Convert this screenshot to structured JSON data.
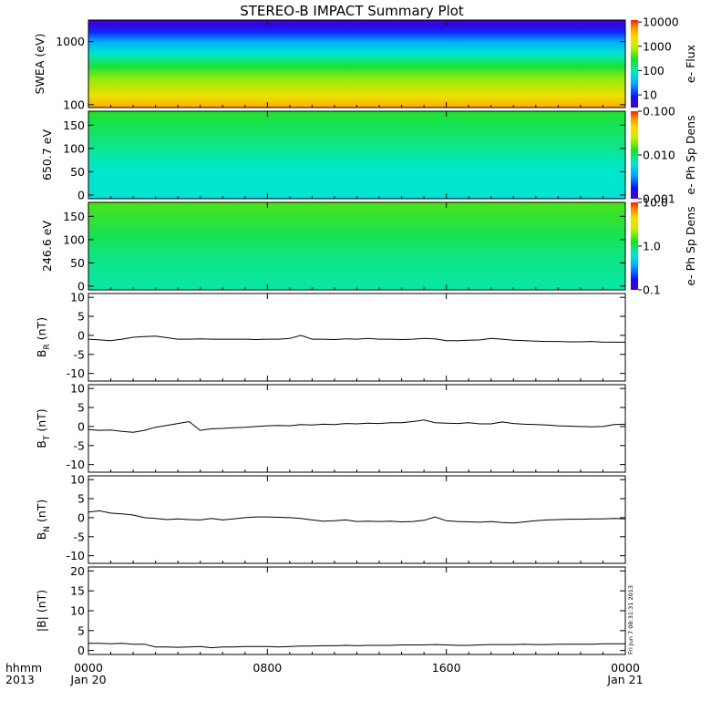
{
  "title": "STEREO-B IMPACT Summary Plot",
  "x_axis": {
    "corner_line1": "hhmm",
    "corner_line2": "2013",
    "ticks": [
      {
        "hour": 0,
        "label1": "0000",
        "label2": "Jan 20"
      },
      {
        "hour": 8,
        "label1": "0800",
        "label2": ""
      },
      {
        "hour": 16,
        "label1": "1600",
        "label2": ""
      },
      {
        "hour": 24,
        "label1": "0000",
        "label2": "Jan 21"
      }
    ]
  },
  "stamp": "Fri Jun  7 08:31:31 2013",
  "colors": {
    "line": "#000000",
    "axis": "#000000"
  },
  "chart_data": [
    {
      "type": "heatmap",
      "panel": "swea",
      "ylabel": "SWEA (eV)",
      "yscale": "log",
      "ylim": [
        90,
        2200
      ],
      "yticks": [
        {
          "v": 100,
          "label": "100"
        },
        {
          "v": 1000,
          "label": "1000"
        }
      ],
      "colorbar": {
        "label": "e- Flux",
        "scale": "log",
        "range": [
          3,
          12000
        ],
        "ticks": [
          {
            "v": 10,
            "label": "10"
          },
          {
            "v": 100,
            "label": "100"
          },
          {
            "v": 1000,
            "label": "1000"
          },
          {
            "v": 10000,
            "label": "10000"
          }
        ]
      },
      "profile": [
        {
          "energy": 90,
          "flux": 4300
        },
        {
          "energy": 140,
          "flux": 1800
        },
        {
          "energy": 250,
          "flux": 700
        },
        {
          "energy": 400,
          "flux": 250
        },
        {
          "energy": 650,
          "flux": 80
        },
        {
          "energy": 1000,
          "flux": 30
        },
        {
          "energy": 1400,
          "flux": 10
        },
        {
          "energy": 1800,
          "flux": 5
        },
        {
          "energy": 2200,
          "flux": 3
        }
      ]
    },
    {
      "type": "heatmap",
      "panel": "pad650",
      "ylabel": "650.7 eV",
      "ylim": [
        -8,
        180
      ],
      "yticks": [
        {
          "v": 0,
          "label": "0"
        },
        {
          "v": 50,
          "label": "50"
        },
        {
          "v": 100,
          "label": "100"
        },
        {
          "v": 150,
          "label": "150"
        }
      ],
      "colorbar": {
        "label": "e- Ph Sp Dens",
        "scale": "log",
        "range": [
          0.001,
          0.1
        ],
        "ticks": [
          {
            "v": 0.001,
            "label": "0.001"
          },
          {
            "v": 0.01,
            "label": "0.010"
          },
          {
            "v": 0.1,
            "label": "0.100"
          }
        ]
      },
      "profile": [
        {
          "pitch": 0,
          "density": 0.006
        },
        {
          "pitch": 60,
          "density": 0.0065
        },
        {
          "pitch": 110,
          "density": 0.0085
        },
        {
          "pitch": 180,
          "density": 0.012
        }
      ]
    },
    {
      "type": "heatmap",
      "panel": "pad246",
      "ylabel": "246.6 eV",
      "ylim": [
        -8,
        180
      ],
      "yticks": [
        {
          "v": 0,
          "label": "0"
        },
        {
          "v": 50,
          "label": "50"
        },
        {
          "v": 100,
          "label": "100"
        },
        {
          "v": 150,
          "label": "150"
        }
      ],
      "colorbar": {
        "label": "e- Ph Sp Dens",
        "scale": "log",
        "range": [
          0.1,
          10
        ],
        "ticks": [
          {
            "v": 0.1,
            "label": "0.1"
          },
          {
            "v": 1,
            "label": "1.0"
          },
          {
            "v": 10,
            "label": "10.0"
          }
        ]
      },
      "profile": [
        {
          "pitch": 0,
          "density": 0.75
        },
        {
          "pitch": 60,
          "density": 0.85
        },
        {
          "pitch": 110,
          "density": 1.05
        },
        {
          "pitch": 180,
          "density": 1.5
        }
      ]
    },
    {
      "type": "line",
      "panel": "br",
      "ylabel_main": "B",
      "ylabel_sub": "R",
      "ylabel_unit": " (nT)",
      "ylim": [
        -12,
        11
      ],
      "yticks": [
        -10,
        -5,
        0,
        5,
        10
      ],
      "x": [
        0,
        0.5,
        1,
        1.5,
        2,
        2.5,
        3,
        3.5,
        4,
        4.5,
        5,
        5.5,
        6,
        6.5,
        7,
        7.5,
        8,
        8.5,
        9,
        9.5,
        10,
        10.5,
        11,
        11.5,
        12,
        12.5,
        13,
        13.5,
        14,
        14.5,
        15,
        15.5,
        16,
        16.5,
        17,
        17.5,
        18,
        18.5,
        19,
        19.5,
        20,
        20.5,
        21,
        21.5,
        22,
        22.5,
        23,
        23.5,
        24
      ],
      "values": [
        -1.0,
        -1.2,
        -1.4,
        -1.0,
        -0.5,
        -0.3,
        -0.2,
        -0.6,
        -1.0,
        -1.0,
        -0.9,
        -1.0,
        -1.0,
        -1.0,
        -1.0,
        -1.1,
        -1.0,
        -1.0,
        -0.8,
        0.0,
        -1.0,
        -1.0,
        -1.1,
        -0.9,
        -1.0,
        -0.8,
        -1.0,
        -1.0,
        -1.1,
        -1.0,
        -0.8,
        -0.9,
        -1.4,
        -1.4,
        -1.3,
        -1.2,
        -0.8,
        -1.0,
        -1.3,
        -1.4,
        -1.5,
        -1.6,
        -1.6,
        -1.7,
        -1.7,
        -1.6,
        -1.8,
        -1.8,
        -1.8
      ]
    },
    {
      "type": "line",
      "panel": "bt",
      "ylabel_main": "B",
      "ylabel_sub": "T",
      "ylabel_unit": " (nT)",
      "ylim": [
        -12,
        11
      ],
      "yticks": [
        -10,
        -5,
        0,
        5,
        10
      ],
      "x": [
        0,
        0.5,
        1,
        1.5,
        2,
        2.5,
        3,
        3.5,
        4,
        4.5,
        5,
        5.5,
        6,
        6.5,
        7,
        7.5,
        8,
        8.5,
        9,
        9.5,
        10,
        10.5,
        11,
        11.5,
        12,
        12.5,
        13,
        13.5,
        14,
        14.5,
        15,
        15.5,
        16,
        16.5,
        17,
        17.5,
        18,
        18.5,
        19,
        19.5,
        20,
        20.5,
        21,
        21.5,
        22,
        22.5,
        23,
        23.5,
        24
      ],
      "values": [
        -0.8,
        -1.0,
        -0.9,
        -1.3,
        -1.5,
        -1.0,
        -0.2,
        0.3,
        0.8,
        1.3,
        -1.0,
        -0.6,
        -0.5,
        -0.3,
        -0.2,
        0.0,
        0.2,
        0.3,
        0.2,
        0.5,
        0.4,
        0.6,
        0.5,
        0.8,
        0.7,
        0.9,
        0.8,
        1.0,
        1.0,
        1.3,
        1.7,
        1.0,
        0.9,
        0.8,
        1.0,
        0.7,
        0.7,
        1.2,
        0.8,
        0.6,
        0.5,
        0.4,
        0.2,
        0.1,
        0.0,
        -0.1,
        0.0,
        0.5,
        0.6
      ]
    },
    {
      "type": "line",
      "panel": "bn",
      "ylabel_main": "B",
      "ylabel_sub": "N",
      "ylabel_unit": " (nT)",
      "ylim": [
        -12,
        11
      ],
      "yticks": [
        -10,
        -5,
        0,
        5,
        10
      ],
      "x": [
        0,
        0.5,
        1,
        1.5,
        2,
        2.5,
        3,
        3.5,
        4,
        4.5,
        5,
        5.5,
        6,
        6.5,
        7,
        7.5,
        8,
        8.5,
        9,
        9.5,
        10,
        10.5,
        11,
        11.5,
        12,
        12.5,
        13,
        13.5,
        14,
        14.5,
        15,
        15.5,
        16,
        16.5,
        17,
        17.5,
        18,
        18.5,
        19,
        19.5,
        20,
        20.5,
        21,
        21.5,
        22,
        22.5,
        23,
        23.5,
        24
      ],
      "values": [
        1.5,
        1.8,
        1.2,
        1.0,
        0.7,
        0.0,
        -0.2,
        -0.5,
        -0.3,
        -0.5,
        -0.6,
        -0.2,
        -0.6,
        -0.3,
        0.0,
        0.2,
        0.2,
        0.1,
        0.0,
        -0.2,
        -0.6,
        -0.9,
        -0.8,
        -0.6,
        -1.0,
        -0.9,
        -1.0,
        -0.9,
        -1.1,
        -1.0,
        -0.7,
        0.2,
        -0.8,
        -1.0,
        -1.1,
        -1.2,
        -1.0,
        -1.3,
        -1.4,
        -1.1,
        -0.8,
        -0.6,
        -0.5,
        -0.4,
        -0.4,
        -0.3,
        -0.3,
        -0.2,
        -0.3
      ]
    },
    {
      "type": "line",
      "panel": "bmag",
      "ylabel_main": "|B|",
      "ylabel_sub": "",
      "ylabel_unit": " (nT)",
      "ylim": [
        -1,
        21
      ],
      "yticks": [
        0,
        5,
        10,
        15,
        20
      ],
      "x": [
        0,
        0.5,
        1,
        1.5,
        2,
        2.5,
        3,
        3.5,
        4,
        4.5,
        5,
        5.5,
        6,
        6.5,
        7,
        7.5,
        8,
        8.5,
        9,
        9.5,
        10,
        10.5,
        11,
        11.5,
        12,
        12.5,
        13,
        13.5,
        14,
        14.5,
        15,
        15.5,
        16,
        16.5,
        17,
        17.5,
        18,
        18.5,
        19,
        19.5,
        20,
        20.5,
        21,
        21.5,
        22,
        22.5,
        23,
        23.5,
        24
      ],
      "values": [
        1.8,
        1.8,
        1.7,
        1.8,
        1.6,
        1.6,
        0.9,
        0.9,
        0.8,
        0.9,
        1.0,
        0.7,
        0.9,
        0.9,
        1.0,
        1.0,
        1.0,
        0.9,
        1.0,
        1.1,
        1.1,
        1.2,
        1.2,
        1.3,
        1.2,
        1.3,
        1.3,
        1.3,
        1.4,
        1.4,
        1.4,
        1.5,
        1.4,
        1.3,
        1.3,
        1.4,
        1.5,
        1.5,
        1.5,
        1.6,
        1.5,
        1.5,
        1.6,
        1.6,
        1.6,
        1.6,
        1.7,
        1.7,
        1.7
      ]
    }
  ]
}
